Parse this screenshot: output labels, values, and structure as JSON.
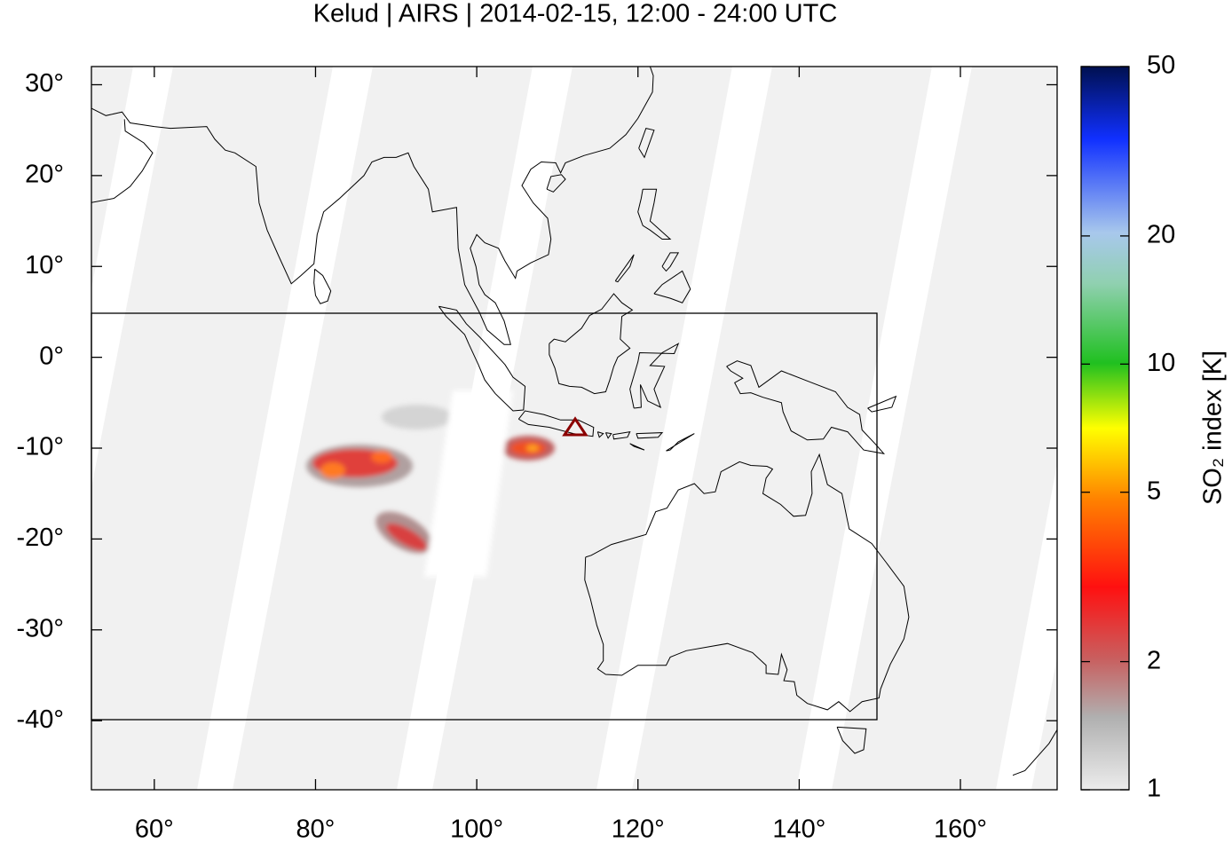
{
  "chart_data": {
    "type": "map",
    "title": "Kelud | AIRS | 2014-02-15, 12:00 - 24:00 UTC",
    "xlim": [
      52.2,
      172
    ],
    "ylim": [
      -47.6,
      32
    ],
    "xticks": [
      {
        "value": 60,
        "label": "60°"
      },
      {
        "value": 80,
        "label": "80°"
      },
      {
        "value": 100,
        "label": "100°"
      },
      {
        "value": 120,
        "label": "120°"
      },
      {
        "value": 140,
        "label": "140°"
      },
      {
        "value": 160,
        "label": "160°"
      }
    ],
    "yticks": [
      {
        "value": 30,
        "label": "30°"
      },
      {
        "value": 20,
        "label": "20°"
      },
      {
        "value": 10,
        "label": "10°"
      },
      {
        "value": 0,
        "label": "0°"
      },
      {
        "value": -10,
        "label": "-10°"
      },
      {
        "value": -20,
        "label": "-20°"
      },
      {
        "value": -30,
        "label": "-30°"
      },
      {
        "value": -40,
        "label": "-40°"
      }
    ],
    "colorbar": {
      "label": "SO₂ index [K]",
      "lim": [
        1,
        50
      ],
      "scale": "log",
      "ticks": [
        1,
        2,
        5,
        10,
        20,
        50
      ]
    }
  }
}
